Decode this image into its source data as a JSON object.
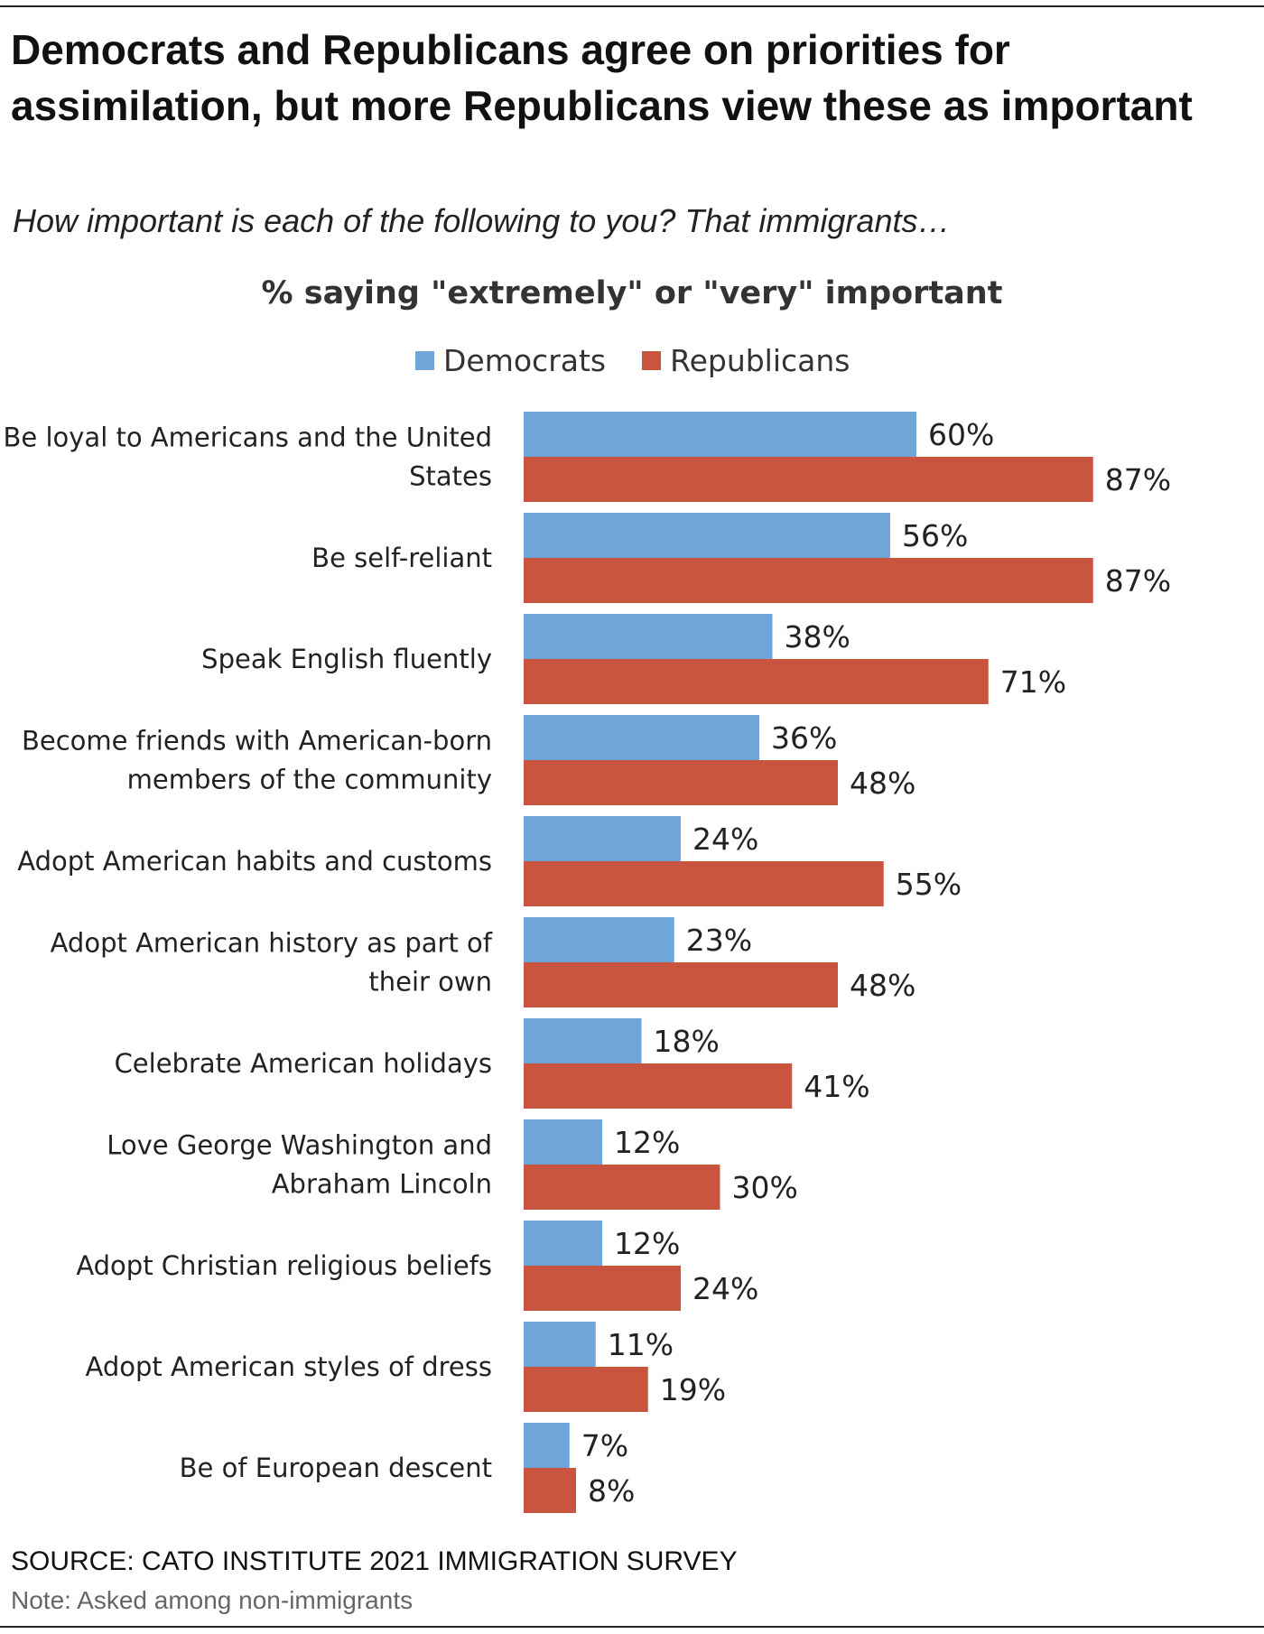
{
  "title": "Democrats and Republicans agree on priorities for assimilation, but more Republicans view these as important",
  "subtitle": "How important is each of the following to you? That immigrants…",
  "source": "SOURCE: CATO INSTITUTE 2021 IMMIGRATION SURVEY",
  "note": "Note: Asked among non-immigrants",
  "chart_data": {
    "type": "bar",
    "orientation": "horizontal",
    "title": "% saying \"extremely\" or \"very\" important",
    "xlabel": "",
    "ylabel": "",
    "xlim": [
      0,
      100
    ],
    "grid": false,
    "legend_position": "top-center",
    "value_suffix": "%",
    "categories": [
      [
        "Be loyal to Americans and the United",
        "States"
      ],
      [
        "Be self-reliant"
      ],
      [
        "Speak English fluently"
      ],
      [
        "Become friends with American-born",
        "members of the community"
      ],
      [
        "Adopt American habits and customs"
      ],
      [
        "Adopt American history as part of",
        "their own"
      ],
      [
        "Celebrate American holidays"
      ],
      [
        "Love George Washington and",
        "Abraham Lincoln"
      ],
      [
        "Adopt Christian religious beliefs"
      ],
      [
        "Adopt American styles of dress"
      ],
      [
        "Be of European descent"
      ]
    ],
    "series": [
      {
        "name": "Democrats",
        "color": "#6fa5d9",
        "values": [
          60,
          56,
          38,
          36,
          24,
          23,
          18,
          12,
          12,
          11,
          7
        ]
      },
      {
        "name": "Republicans",
        "color": "#c9553e",
        "values": [
          87,
          87,
          71,
          48,
          55,
          48,
          41,
          30,
          24,
          19,
          8
        ]
      }
    ]
  }
}
